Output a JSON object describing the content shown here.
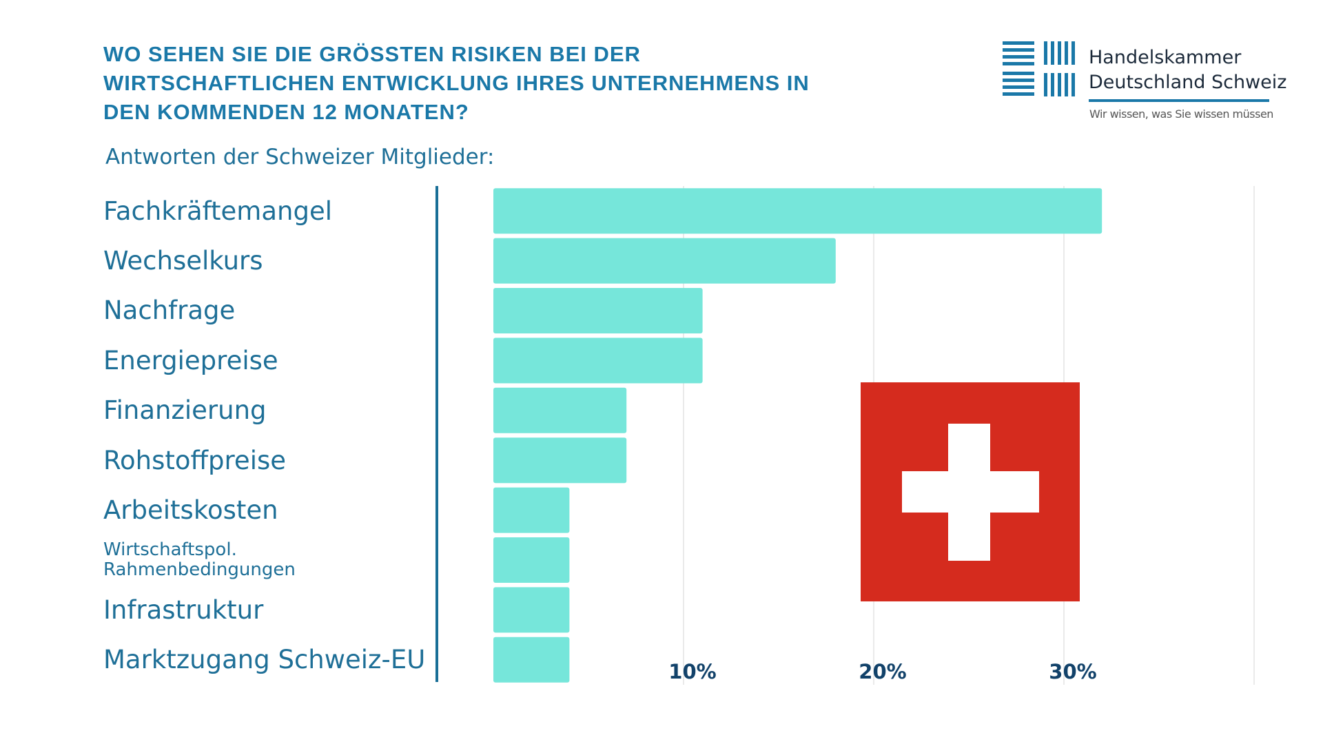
{
  "header": {
    "title": "WO SEHEN SIE DIE GRÖSSTEN RISIKEN BEI DER WIRTSCHAFTLICHEN ENTWICKLUNG IHRES UNTERNEHMENS IN DEN KOMMENDEN 12 MONATEN?",
    "subtitle": "Antworten der Schweizer Mitglieder:"
  },
  "logo": {
    "line1": "Handelskammer",
    "line2": "Deutschland Schweiz",
    "tagline": "Wir wissen, was Sie wissen müssen",
    "icon": "stripes-logo-icon"
  },
  "flag": {
    "icon": "swiss-flag-icon",
    "red": "#d52b1e"
  },
  "colors": {
    "bar": "#76e6da",
    "text": "#1e6f97",
    "title": "#1a78a8",
    "axis_labels": "#12426a"
  },
  "chart_data": {
    "type": "bar",
    "orientation": "horizontal",
    "categories": [
      "Fachkräftemangel",
      "Wechselkurs",
      "Nachfrage",
      "Energiepreise",
      "Finanzierung",
      "Rohstoffpreise",
      "Arbeitskosten",
      "Wirtschaftspol. Rahmenbedingungen",
      "Infrastruktur",
      "Marktzugang Schweiz-EU"
    ],
    "values": [
      32,
      18,
      11,
      11,
      7,
      7,
      4,
      4,
      4,
      4
    ],
    "ticks": [
      10,
      20,
      30
    ],
    "tick_labels": [
      "10%",
      "20%",
      "30%"
    ],
    "xlim": [
      0,
      40
    ],
    "grid": true,
    "legend": "none"
  }
}
